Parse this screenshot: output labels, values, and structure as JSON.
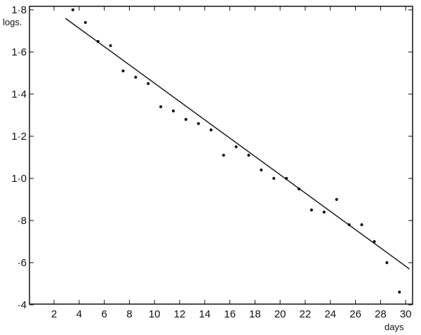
{
  "chart_data": {
    "type": "scatter",
    "xlabel": "days",
    "ylabel": "logs.",
    "xlim": [
      0,
      30.6
    ],
    "ylim": [
      0.4,
      1.82
    ],
    "grid": false,
    "x_ticks": [
      2,
      4,
      6,
      8,
      10,
      12,
      14,
      16,
      18,
      20,
      22,
      24,
      26,
      28,
      30
    ],
    "x_tick_labels": [
      "2",
      "4",
      "6",
      "8",
      "10",
      "12",
      "14",
      "16",
      "18",
      "20",
      "22",
      "24",
      "26",
      "28",
      "30"
    ],
    "y_ticks": [
      1.8,
      1.6,
      1.4,
      1.2,
      1.0,
      0.8,
      0.6,
      0.4
    ],
    "y_tick_labels": [
      "1·8",
      "1·6",
      "1·4",
      "1·2",
      "1·0",
      "·8",
      "·6",
      "·4"
    ],
    "points": {
      "x": [
        3.5,
        4.5,
        5.5,
        6.5,
        7.5,
        8.5,
        9.5,
        10.5,
        11.5,
        12.5,
        13.5,
        14.5,
        15.5,
        16.5,
        17.5,
        18.5,
        19.5,
        20.5,
        21.5,
        22.5,
        23.5,
        24.5,
        25.5,
        26.5,
        27.5,
        28.5,
        29.5
      ],
      "y": [
        1.8,
        1.74,
        1.65,
        1.63,
        1.51,
        1.48,
        1.45,
        1.34,
        1.32,
        1.28,
        1.26,
        1.23,
        1.11,
        1.15,
        1.11,
        1.04,
        1.0,
        1.0,
        0.95,
        0.85,
        0.84,
        0.9,
        0.78,
        0.78,
        0.7,
        0.6,
        0.46
      ]
    },
    "fit_line": {
      "x": [
        2.9,
        30.3
      ],
      "y": [
        1.76,
        0.57
      ]
    }
  }
}
